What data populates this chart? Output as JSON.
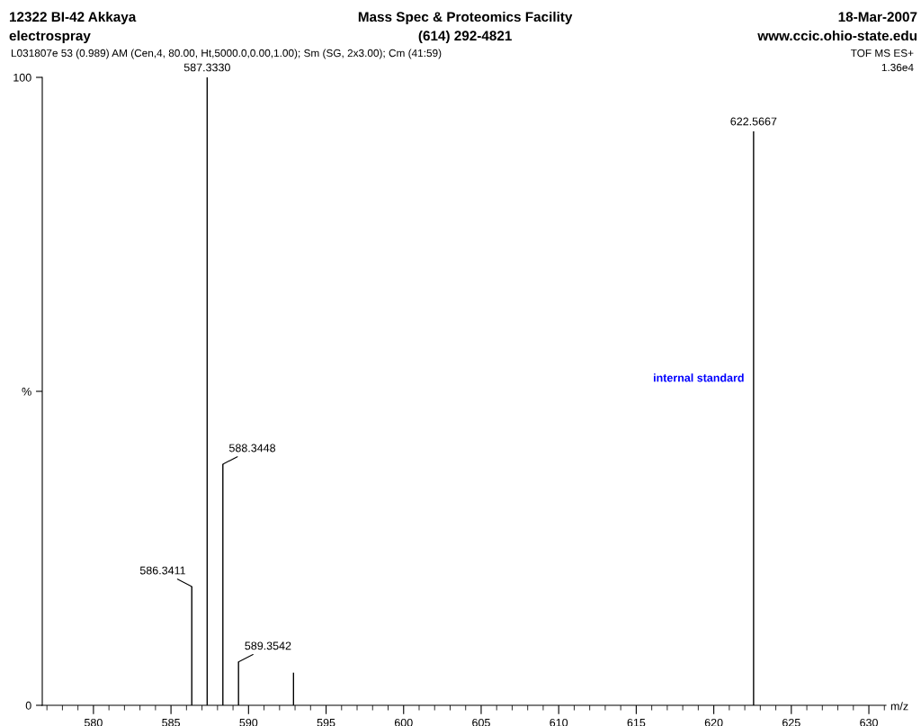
{
  "chart_data": {
    "type": "bar",
    "title": "Mass Spec & Proteomics Facility",
    "subtitle": "(614) 292-4821",
    "xlabel": "m/z",
    "annotations": [
      "12322 BI-42 Akkaya",
      "electrospray",
      "18-Mar-2007",
      "www.ccic.ohio-state.edu",
      "L031807e 53 (0.989) AM (Cen,4, 80.00, Ht,5000.0,0.00,1.00); Sm (SG, 2x3.00); Cm (41:59)",
      "TOF MS ES+",
      "1.36e4",
      {
        "text": "internal standard",
        "x": 622.5667,
        "y": 52
      },
      {
        "text": "586.3411",
        "x": 586.3411,
        "y": 18.9
      },
      {
        "text": "587.3330",
        "x": 587.333,
        "y": 100
      },
      {
        "text": "588.3448",
        "x": 588.3448,
        "y": 38.4
      },
      {
        "text": "589.3542",
        "x": 589.3542,
        "y": 6.9
      },
      {
        "text": "622.5667",
        "x": 622.5667,
        "y": 91.4
      }
    ],
    "x": [
      586.3411,
      587.333,
      588.3448,
      589.3542,
      592.9,
      622.5667
    ],
    "values": [
      18.9,
      100,
      38.4,
      6.9,
      5.2,
      91.4
    ],
    "color": "#000000",
    "xlim": [
      576.7,
      631.1
    ],
    "xticks": [
      580,
      585,
      590,
      595,
      600,
      605,
      610,
      615,
      620,
      625,
      630
    ],
    "ylim": [
      0,
      100
    ],
    "yticks": [
      0,
      {
        "value": 50,
        "label": "%"
      },
      100
    ],
    "grid": false
  }
}
